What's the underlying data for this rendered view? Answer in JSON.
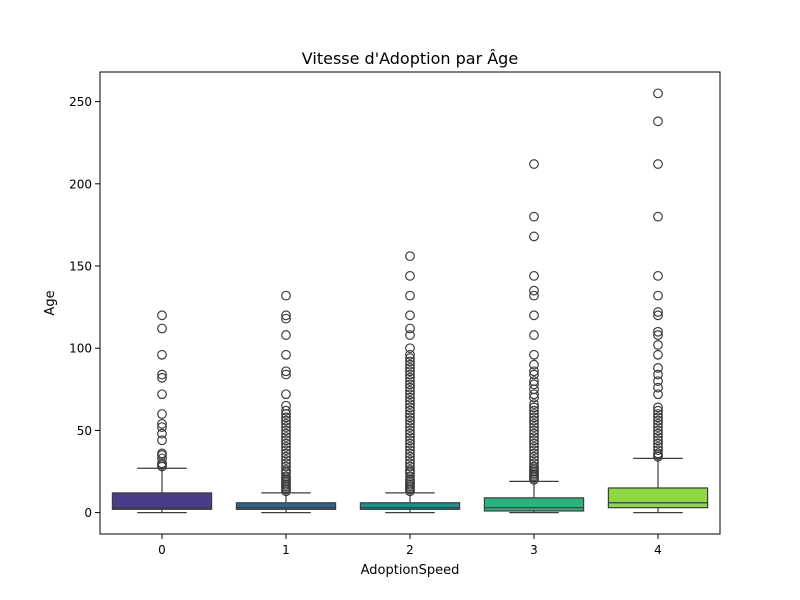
{
  "chart_data": {
    "type": "box",
    "title": "Vitesse d'Adoption par Âge",
    "xlabel": "AdoptionSpeed",
    "ylabel": "Age",
    "categories": [
      "0",
      "1",
      "2",
      "3",
      "4"
    ],
    "ylim": [
      -13,
      268
    ],
    "yticks": [
      0,
      50,
      100,
      150,
      200,
      250
    ],
    "ytick_labels": [
      "0",
      "50",
      "100",
      "150",
      "200",
      "250"
    ],
    "grid": false,
    "boxes": [
      {
        "category": "0",
        "whisker_low": 0,
        "q1": 2,
        "median": 3,
        "q3": 12,
        "whisker_high": 27,
        "color": "#483d8b",
        "outliers": [
          28,
          29,
          30,
          33,
          35,
          36,
          44,
          48,
          52,
          54,
          60,
          72,
          82,
          84,
          96,
          112,
          120
        ]
      },
      {
        "category": "1",
        "whisker_low": 0,
        "q1": 2,
        "median": 3,
        "q3": 6,
        "whisker_high": 12,
        "color": "#33638d",
        "outliers": [
          13,
          14,
          15,
          16,
          17,
          18,
          19,
          20,
          21,
          22,
          24,
          25,
          26,
          28,
          30,
          32,
          34,
          36,
          38,
          40,
          42,
          44,
          46,
          48,
          50,
          52,
          54,
          56,
          58,
          60,
          62,
          65,
          72,
          84,
          86,
          96,
          108,
          118,
          120,
          132
        ]
      },
      {
        "category": "2",
        "whisker_low": 0,
        "q1": 2,
        "median": 3,
        "q3": 6,
        "whisker_high": 12,
        "color": "#238a8d",
        "outliers": [
          13,
          14,
          15,
          16,
          17,
          18,
          19,
          20,
          22,
          24,
          25,
          26,
          28,
          30,
          32,
          34,
          36,
          38,
          40,
          42,
          44,
          46,
          48,
          50,
          52,
          54,
          56,
          58,
          60,
          62,
          64,
          66,
          68,
          70,
          72,
          74,
          76,
          78,
          80,
          82,
          84,
          86,
          88,
          90,
          92,
          94,
          96,
          100,
          108,
          112,
          120,
          132,
          144,
          156
        ]
      },
      {
        "category": "3",
        "whisker_low": 0,
        "q1": 1,
        "median": 3,
        "q3": 9,
        "whisker_high": 19,
        "color": "#2db27d",
        "outliers": [
          20,
          21,
          22,
          23,
          24,
          25,
          26,
          27,
          28,
          30,
          32,
          34,
          36,
          38,
          40,
          42,
          44,
          46,
          48,
          50,
          52,
          54,
          56,
          58,
          60,
          62,
          64,
          66,
          70,
          72,
          75,
          78,
          80,
          84,
          86,
          90,
          96,
          108,
          120,
          132,
          135,
          144,
          168,
          180,
          212
        ]
      },
      {
        "category": "4",
        "whisker_low": 0,
        "q1": 3,
        "median": 6,
        "q3": 15,
        "whisker_high": 33,
        "color": "#8fd744",
        "outliers": [
          34,
          35,
          36,
          38,
          40,
          42,
          44,
          46,
          48,
          50,
          52,
          54,
          56,
          58,
          60,
          62,
          64,
          72,
          76,
          80,
          84,
          88,
          96,
          102,
          108,
          110,
          120,
          122,
          132,
          144,
          180,
          212,
          238,
          255
        ]
      }
    ]
  }
}
